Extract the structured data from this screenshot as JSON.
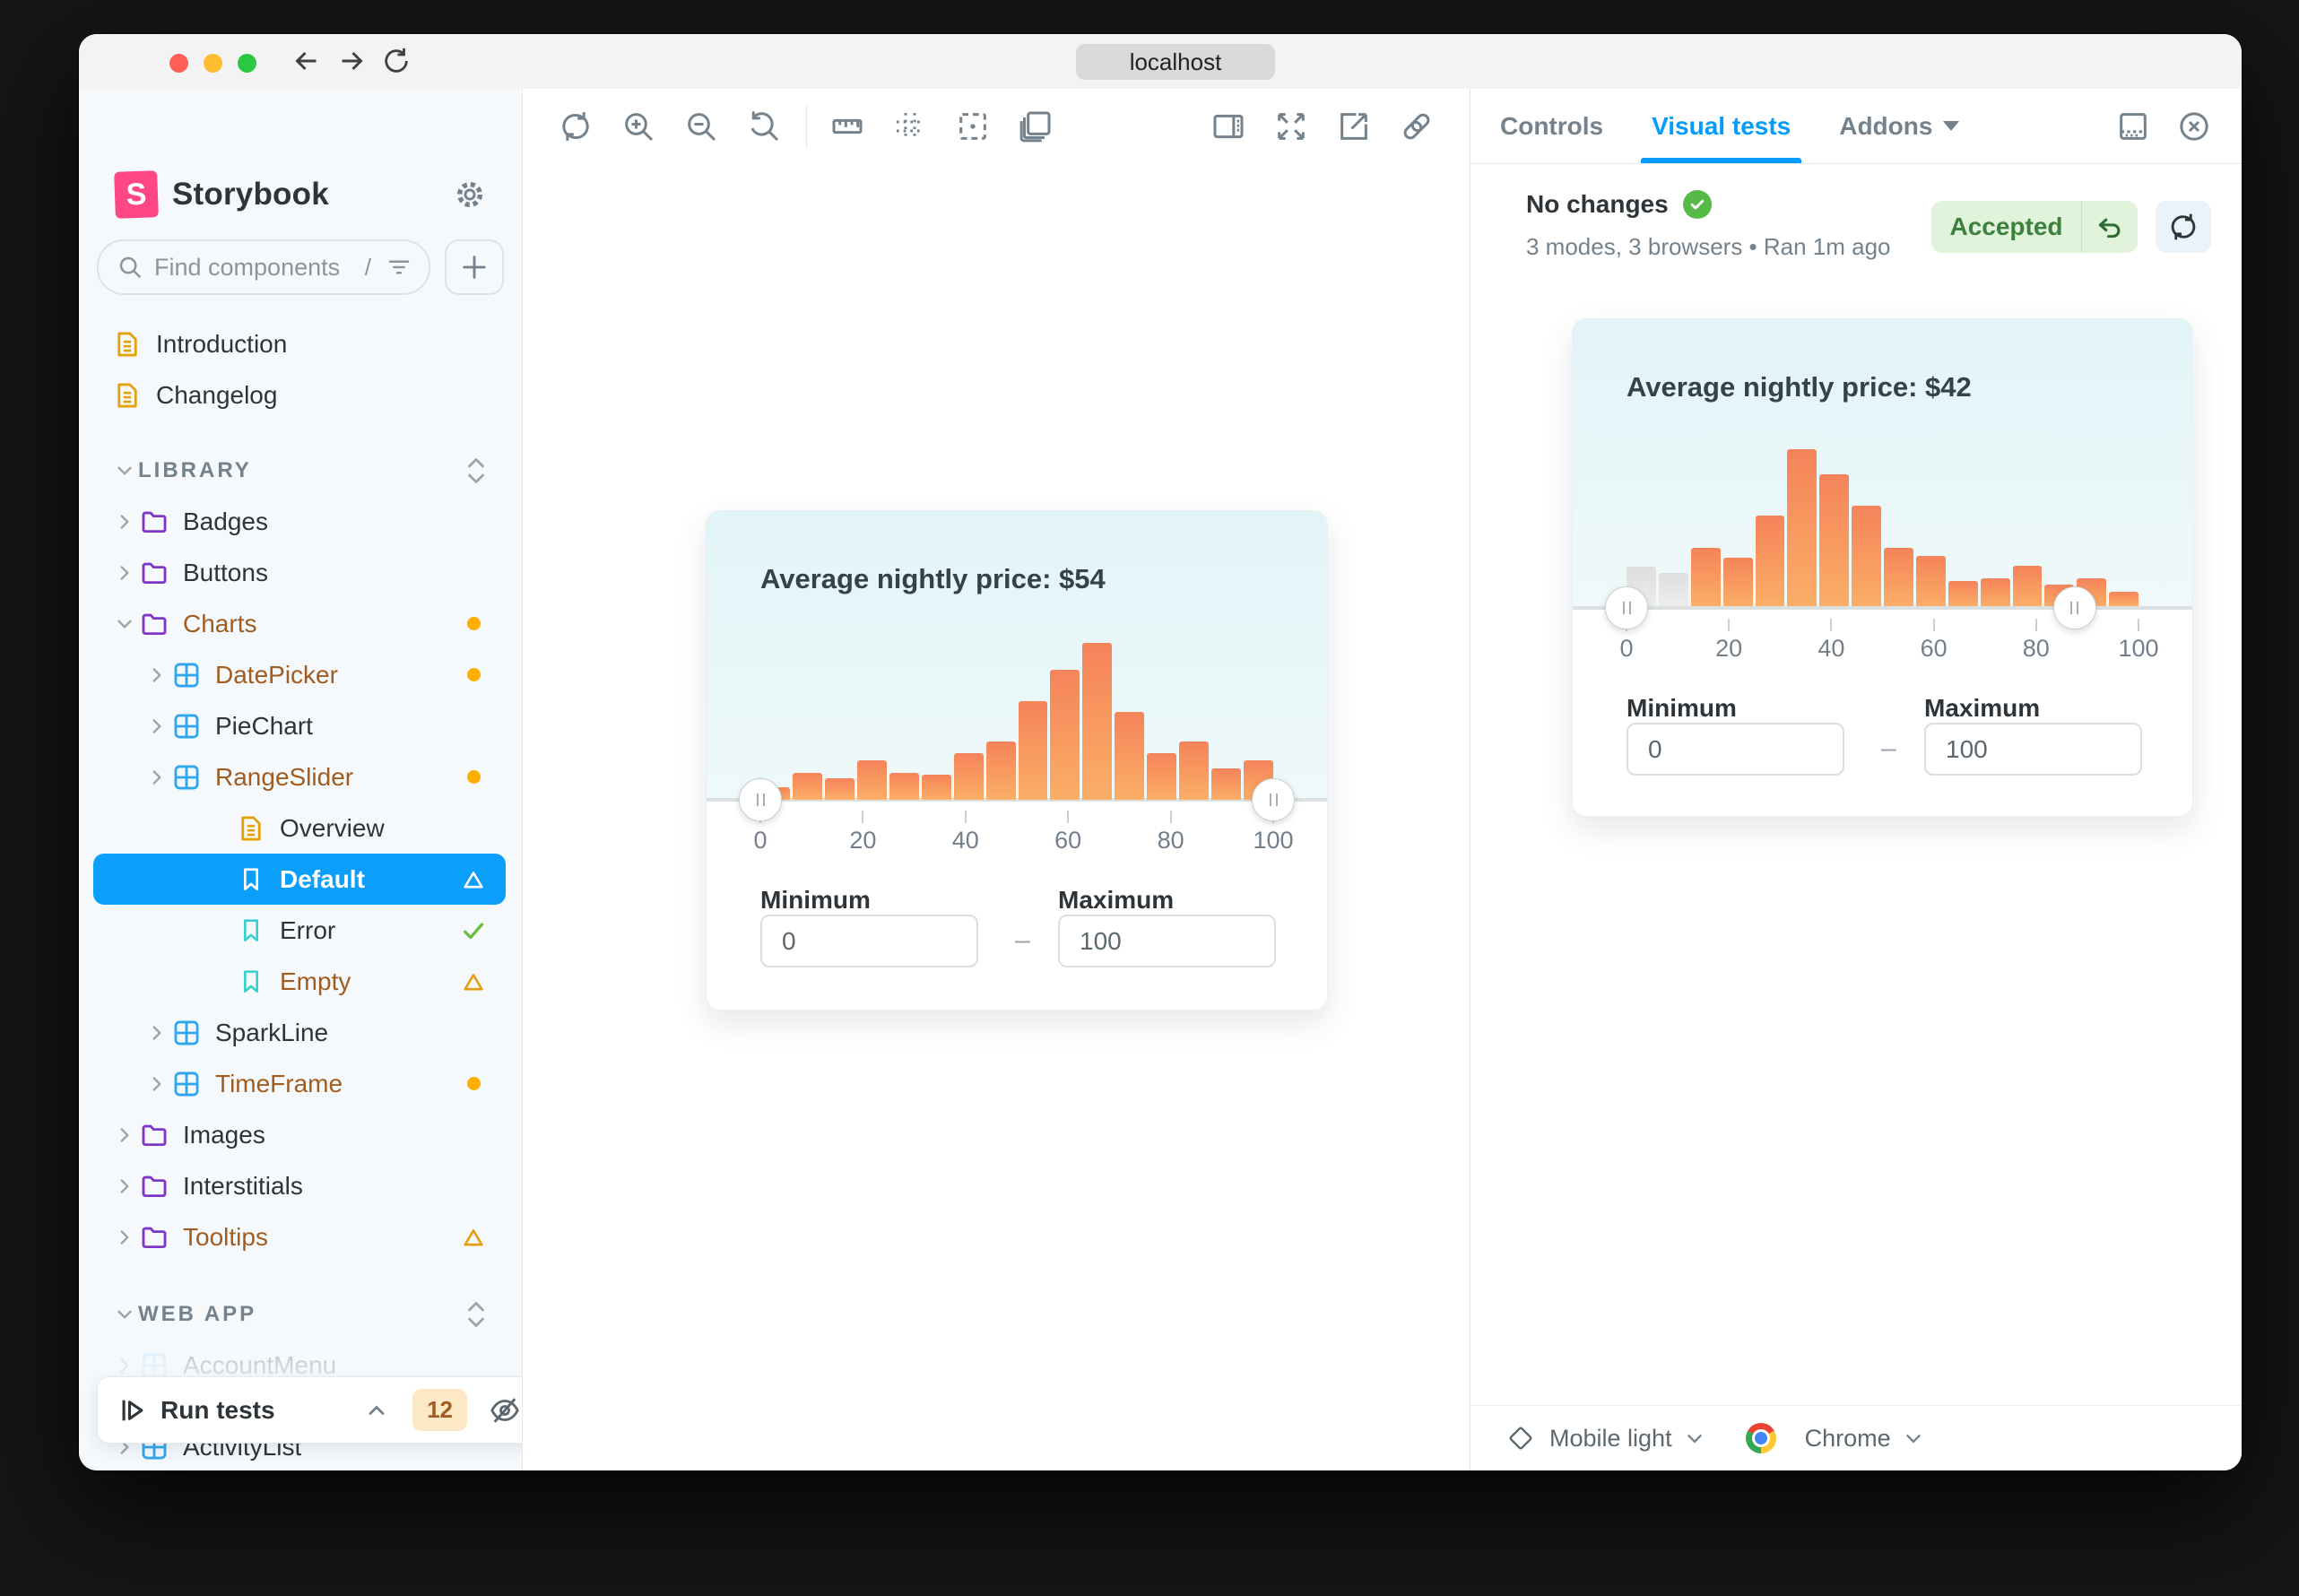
{
  "colors": {
    "brand_pink": "#FF4785",
    "accent_blue": "#029CFD",
    "selected_row_blue": "#0C9EFB",
    "sidebar_bg": "#F6F9FC",
    "changed_text": "#A15C20",
    "status_dot_orange": "#FFAE00",
    "warning_triangle": "#E69D0D",
    "check_green": "#66BF3C",
    "bar_gradient_top": "#F5835A",
    "bar_gradient_bottom": "#FBAE66",
    "muted_bar_gray": "#E4E4E4",
    "chart_bg_top": "#E2F4F8",
    "accepted_bg": "#E1F3DB",
    "accepted_text": "#3C823E"
  },
  "browser": {
    "url_label": "localhost"
  },
  "sidebar": {
    "brand": "Storybook",
    "brand_letter": "S",
    "search": {
      "placeholder": "Find components",
      "shortcut": "/"
    },
    "items": [
      {
        "id": "introduction",
        "type": "doc",
        "depth": 1,
        "label": "Introduction"
      },
      {
        "id": "changelog",
        "type": "doc",
        "depth": 1,
        "label": "Changelog"
      },
      {
        "id": "library",
        "type": "section",
        "depth": 1,
        "label": "LIBRARY",
        "gap": 27
      },
      {
        "id": "badges",
        "type": "folder",
        "depth": 1,
        "label": "Badges",
        "chevron": "right"
      },
      {
        "id": "buttons",
        "type": "folder",
        "depth": 1,
        "label": "Buttons",
        "chevron": "right"
      },
      {
        "id": "charts",
        "type": "folder",
        "depth": 1,
        "label": "Charts",
        "chevron": "down",
        "changed": true,
        "status": "dot"
      },
      {
        "id": "datepicker",
        "type": "component",
        "depth": 2,
        "label": "DatePicker",
        "chevron": "right",
        "changed": true,
        "status": "dot"
      },
      {
        "id": "piechart",
        "type": "component",
        "depth": 2,
        "label": "PieChart",
        "chevron": "right"
      },
      {
        "id": "rangeslider",
        "type": "component",
        "depth": 2,
        "label": "RangeSlider",
        "chevron": "right",
        "changed": true,
        "status": "dot"
      },
      {
        "id": "overview",
        "type": "story-doc",
        "depth": 3,
        "label": "Overview"
      },
      {
        "id": "default",
        "type": "story",
        "depth": 3,
        "label": "Default",
        "selected": true,
        "status": "triangle"
      },
      {
        "id": "error",
        "type": "story",
        "depth": 3,
        "label": "Error",
        "status": "check"
      },
      {
        "id": "empty",
        "type": "story",
        "depth": 3,
        "label": "Empty",
        "changed": true,
        "status": "warning"
      },
      {
        "id": "sparkline",
        "type": "component",
        "depth": 2,
        "label": "SparkLine",
        "chevron": "right"
      },
      {
        "id": "timeframe",
        "type": "component",
        "depth": 2,
        "label": "TimeFrame",
        "chevron": "right",
        "changed": true,
        "status": "dot"
      },
      {
        "id": "images",
        "type": "folder",
        "depth": 1,
        "label": "Images",
        "chevron": "right"
      },
      {
        "id": "interstitials",
        "type": "folder",
        "depth": 1,
        "label": "Interstitials",
        "chevron": "right"
      },
      {
        "id": "tooltips",
        "type": "folder",
        "depth": 1,
        "label": "Tooltips",
        "chevron": "right",
        "changed": true,
        "status": "warning"
      },
      {
        "id": "web-app",
        "type": "section",
        "depth": 1,
        "label": "WEB APP",
        "gap": 29
      },
      {
        "id": "accountmenu",
        "type": "component",
        "depth": 1,
        "label": "AccountMenu",
        "chevron": "right",
        "faded": true
      },
      {
        "id": "activitylist",
        "type": "component",
        "depth": 1,
        "label": "ActivityList",
        "chevron": "right",
        "gap": 34
      }
    ],
    "run_tests": {
      "label": "Run tests",
      "count": "12"
    }
  },
  "canvas_toolbar": {
    "left_icons": [
      "remount-icon",
      "zoom-in-icon",
      "zoom-out-icon",
      "zoom-reset-icon",
      "measure-icon",
      "grid-icon",
      "outline-icon",
      "layers-icon"
    ],
    "right_icons": [
      "panel-toggle-icon",
      "fullscreen-icon",
      "open-new-tab-icon",
      "link-icon"
    ]
  },
  "panel": {
    "tabs": [
      {
        "label": "Controls",
        "active": false
      },
      {
        "label": "Visual tests",
        "active": true
      },
      {
        "label": "Addons",
        "active": false,
        "caret": true
      }
    ],
    "corner_icons": [
      "bottom-panel-icon",
      "close-icon"
    ],
    "header": {
      "status_text": "No changes",
      "meta_text": "3 modes, 3 browsers • Ran 1m ago",
      "accepted_label": "Accepted"
    },
    "footer": {
      "mode_label": "Mobile light",
      "browser_label": "Chrome"
    }
  },
  "chart_data": [
    {
      "type": "bar",
      "subtype": "histogram-with-range-slider",
      "title": "Average nightly price: $54",
      "xlabel": "",
      "ylabel": "",
      "x_range": [
        0,
        100
      ],
      "x_ticks": [
        0,
        20,
        40,
        60,
        80,
        100
      ],
      "bin_width": 6.25,
      "values_relative_percent": [
        8,
        17,
        14,
        25,
        17,
        16,
        30,
        37,
        63,
        83,
        100,
        56,
        30,
        37,
        20,
        25
      ],
      "muted_bar_indexes": [],
      "slider": {
        "min_handle_pos": 0,
        "max_handle_pos": 100
      },
      "fields": {
        "min_label": "Minimum",
        "min_value": "0",
        "max_label": "Maximum",
        "max_value": "100",
        "separator": "–"
      }
    },
    {
      "type": "bar",
      "subtype": "histogram-with-range-slider",
      "title": "Average nightly price: $42",
      "xlabel": "",
      "ylabel": "",
      "x_range": [
        0,
        100
      ],
      "x_ticks": [
        0,
        20,
        40,
        60,
        80,
        100
      ],
      "bin_width": 6.25,
      "values_relative_percent": [
        25,
        21,
        37,
        31,
        58,
        100,
        84,
        64,
        37,
        32,
        16,
        18,
        26,
        14,
        18,
        9
      ],
      "muted_bar_indexes": [
        0,
        1
      ],
      "slider": {
        "min_handle_pos": 0,
        "max_handle_pos": 87.5
      },
      "fields": {
        "min_label": "Minimum",
        "min_value": "0",
        "max_label": "Maximum",
        "max_value": "100",
        "separator": "–"
      }
    }
  ]
}
